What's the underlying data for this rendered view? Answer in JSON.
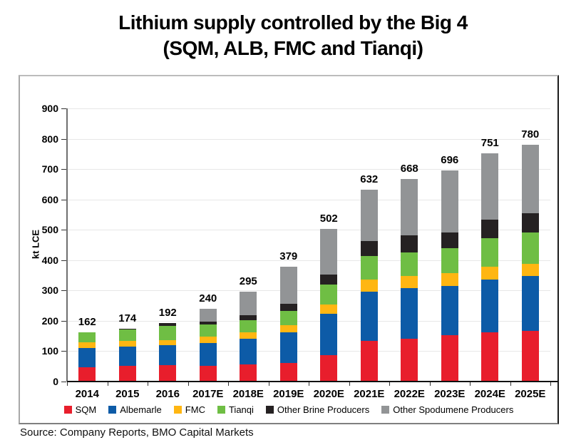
{
  "title": {
    "line1": "Lithium supply controlled by the Big 4",
    "line2": "(SQM, ALB, FMC and Tianqi)"
  },
  "source": "Source: Company Reports, BMO Capital Markets",
  "chart_data": {
    "type": "bar",
    "stacked": true,
    "title": "Lithium supply controlled by the Big 4 (SQM, ALB, FMC and Tianqi)",
    "ylabel": "kt LCE",
    "ylim": [
      0,
      900
    ],
    "ytick_step": 100,
    "grid": true,
    "legend_position": "bottom",
    "categories": [
      "2014",
      "2015",
      "2016",
      "2017E",
      "2018E",
      "2019E",
      "2020E",
      "2021E",
      "2022E",
      "2023E",
      "2024E",
      "2025E"
    ],
    "totals": [
      162,
      174,
      192,
      240,
      295,
      379,
      502,
      632,
      668,
      696,
      751,
      780
    ],
    "series": [
      {
        "name": "SQM",
        "color": "#e81e2c",
        "values": [
          46,
          51,
          53,
          51,
          57,
          61,
          87,
          135,
          142,
          152,
          163,
          167
        ]
      },
      {
        "name": "Albemarle",
        "color": "#0d5ba7",
        "values": [
          64,
          64,
          67,
          77,
          85,
          102,
          136,
          162,
          165,
          162,
          174,
          180
        ]
      },
      {
        "name": "FMC",
        "color": "#ffb612",
        "values": [
          19,
          20,
          17,
          21,
          19,
          22,
          30,
          39,
          40,
          44,
          42,
          41
        ]
      },
      {
        "name": "Tianqi",
        "color": "#6fbe44",
        "values": [
          33,
          36,
          47,
          38,
          42,
          48,
          67,
          77,
          79,
          82,
          93,
          102
        ]
      },
      {
        "name": "Other Brine Producers",
        "color": "#252122",
        "values": [
          0,
          3,
          8,
          11,
          16,
          23,
          33,
          50,
          56,
          52,
          62,
          64
        ]
      },
      {
        "name": "Other Spodumene Producers",
        "color": "#929496",
        "values": [
          0,
          0,
          0,
          42,
          76,
          123,
          149,
          169,
          186,
          204,
          217,
          226
        ]
      }
    ]
  }
}
